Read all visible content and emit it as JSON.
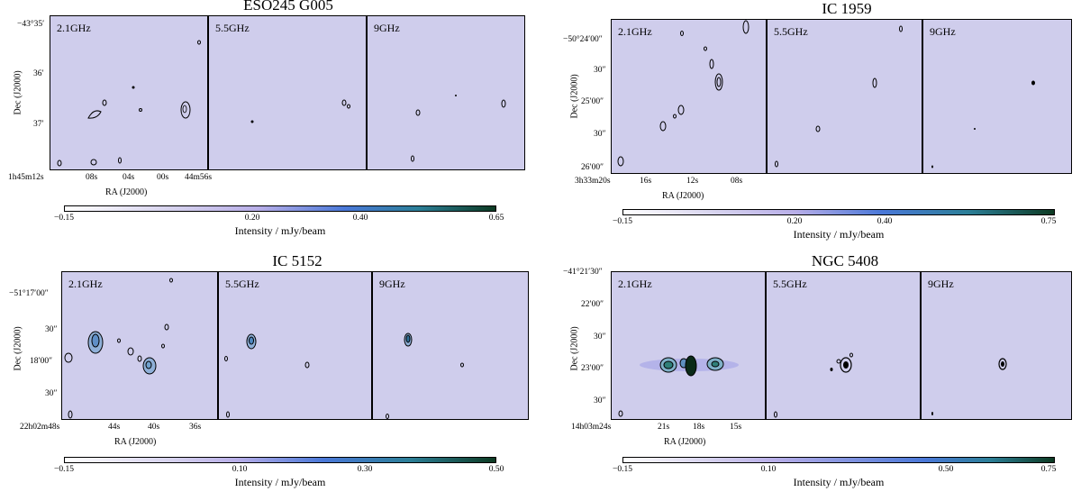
{
  "figures": [
    {
      "title": "ESO245 G005",
      "freqs": [
        "2.1GHz",
        "5.5GHz",
        "9GHz"
      ],
      "y_ticks": [
        "−43°35′",
        "36′",
        "37′"
      ],
      "x_ticks": [
        "1h45m12s",
        "08s",
        "04s",
        "00s",
        "44m56s"
      ],
      "x_label": "RA (J2000)",
      "y_label": "Dec (J2000)",
      "cbar_ticks": [
        "−0.15",
        "0.20",
        "0.40",
        "0.65"
      ],
      "cbar_label": "Intensity / mJy/beam"
    },
    {
      "title": "IC 1959",
      "freqs": [
        "2.1GHz",
        "5.5GHz",
        "9GHz"
      ],
      "y_ticks": [
        "−50°24′00″",
        "30″",
        "25′00″",
        "30″",
        "26′00″"
      ],
      "x_ticks": [
        "3h33m20s",
        "16s",
        "12s",
        "08s"
      ],
      "x_label": "RA (J2000)",
      "y_label": "Dec (J2000)",
      "cbar_ticks": [
        "−0.15",
        "0.20",
        "0.40",
        "0.75"
      ],
      "cbar_label": "Intensity / mJy/beam"
    },
    {
      "title": "IC 5152",
      "freqs": [
        "2.1GHz",
        "5.5GHz",
        "9GHz"
      ],
      "y_ticks": [
        "−51°17′00″",
        "30″",
        "18′00″",
        "30″"
      ],
      "x_ticks": [
        "22h02m48s",
        "44s",
        "40s",
        "36s"
      ],
      "x_label": "RA (J2000)",
      "y_label": "Dec (J2000)",
      "cbar_ticks": [
        "−0.15",
        "0.10",
        "0.30",
        "0.50"
      ],
      "cbar_label": "Intensity / mJy/beam"
    },
    {
      "title": "NGC 5408",
      "freqs": [
        "2.1GHz",
        "5.5GHz",
        "9GHz"
      ],
      "y_ticks": [
        "−41°21′30″",
        "22′00″",
        "30″",
        "23′00″",
        "30″"
      ],
      "x_ticks": [
        "14h03m24s",
        "21s",
        "18s",
        "15s"
      ],
      "x_label": "RA (J2000)",
      "y_label": "Dec (J2000)",
      "cbar_ticks": [
        "−0.15",
        "0.10",
        "0.50",
        "0.75"
      ],
      "cbar_label": "Intensity / mJy/beam"
    }
  ],
  "colors": {
    "background": "#cfcdec",
    "contour": "#000000",
    "cmap_start": "#ffffff",
    "cmap_mid": "#4a78d8",
    "cmap_end": "#0c3a22"
  }
}
